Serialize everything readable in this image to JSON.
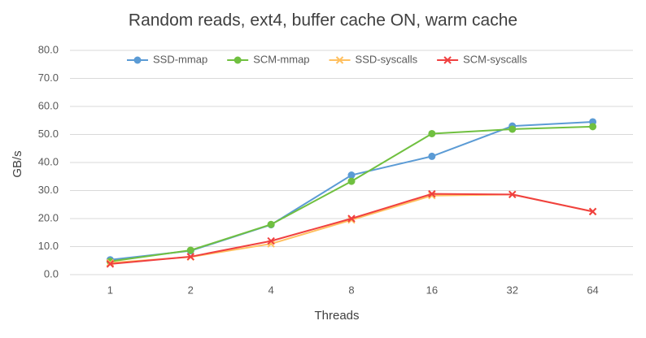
{
  "chart_data": {
    "type": "line",
    "title": "Random reads, ext4, buffer cache ON, warm cache",
    "x_label": "Threads",
    "y_label": "GB/s",
    "categories": [
      "1",
      "2",
      "4",
      "8",
      "16",
      "32",
      "64"
    ],
    "series": [
      {
        "name": "SSD-mmap",
        "color": "#5b9bd5",
        "marker": "circle",
        "values": [
          5.3,
          8.5,
          17.8,
          35.5,
          42.2,
          53.0,
          54.5
        ]
      },
      {
        "name": "SCM-mmap",
        "color": "#70c040",
        "marker": "circle",
        "values": [
          4.7,
          8.7,
          17.9,
          33.3,
          50.3,
          51.9,
          52.8
        ]
      },
      {
        "name": "SSD-syscalls",
        "color": "#ffc060",
        "marker": "x",
        "values": [
          4.2,
          6.3,
          11.0,
          19.5,
          28.2,
          28.6,
          22.5
        ]
      },
      {
        "name": "SCM-syscalls",
        "color": "#f04040",
        "marker": "x",
        "values": [
          3.8,
          6.4,
          12.0,
          20.0,
          28.8,
          28.6,
          22.5
        ]
      }
    ],
    "ylim": [
      0,
      80
    ],
    "yticks": [
      {
        "value": 0,
        "label": "0.0"
      },
      {
        "value": 10,
        "label": "10.0"
      },
      {
        "value": 20,
        "label": "20.0"
      },
      {
        "value": 30,
        "label": "30.0"
      },
      {
        "value": 40,
        "label": "40.0"
      },
      {
        "value": 50,
        "label": "50.0"
      },
      {
        "value": 60,
        "label": "60.0"
      },
      {
        "value": 70,
        "label": "70.0"
      },
      {
        "value": 80,
        "label": "80.0"
      }
    ],
    "grid": true,
    "legend": "top"
  }
}
